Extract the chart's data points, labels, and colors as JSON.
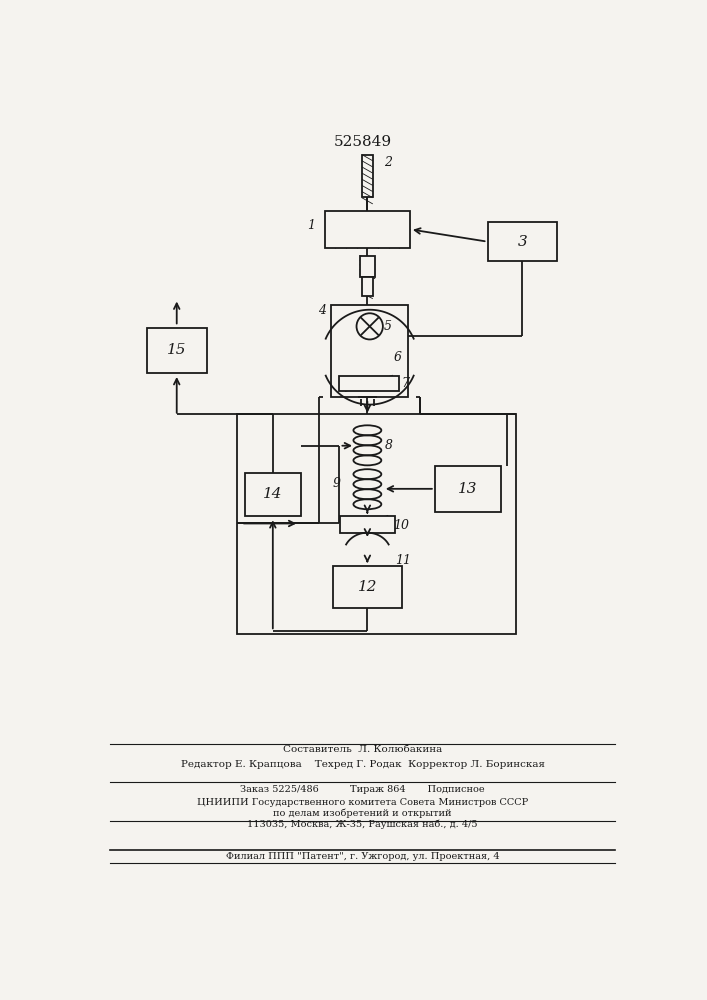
{
  "title": "525849",
  "bg_color": "#f5f3ef",
  "line_color": "#1a1a1a",
  "fig_width": 7.07,
  "fig_height": 10.0,
  "footer_lines": [
    "Составитель  Л. Колюбакина",
    "Редактор Е. Крапцова    Техред Г. Родак  Корректор Л. Боринская",
    "Заказ 5225/486          Тираж 864       Подписное",
    "ЦНИИПИ Государственного комитета Совета Министров СССР",
    "по делам изобретений и открытий",
    "113035, Москва, Ж-35, Раушская наб., д. 4/5",
    "Филиал ППП \"Патент\", г. Ужгород, ул. Проектная, 4"
  ]
}
